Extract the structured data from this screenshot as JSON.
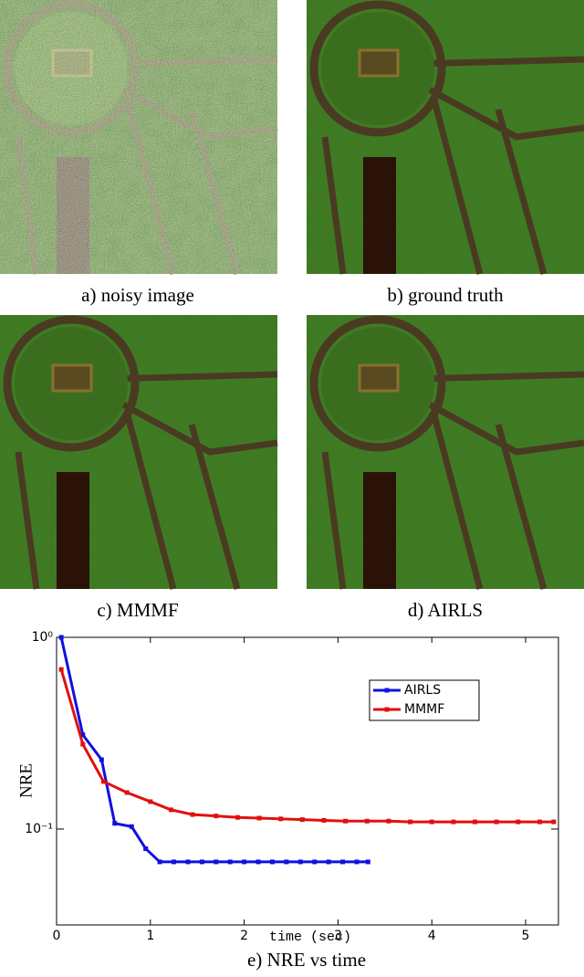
{
  "panels": [
    {
      "caption": "a) noisy image"
    },
    {
      "caption": "b) ground truth"
    },
    {
      "caption": "c) MMMF"
    },
    {
      "caption": "d) AIRLS"
    }
  ],
  "chart_data": {
    "type": "line",
    "caption": "e) NRE vs time",
    "xlabel": "time (sec)",
    "ylabel": "NRE",
    "log_y": true,
    "xlim": [
      0,
      5.35
    ],
    "ylim": [
      0.0316,
      1
    ],
    "xticks": [
      0,
      1,
      2,
      3,
      4,
      5
    ],
    "yticks": [
      {
        "value": 0.1,
        "label": "10⁻¹"
      },
      {
        "value": 1,
        "label": "10⁰"
      }
    ],
    "legend": "upper right",
    "series": [
      {
        "name": "AIRLS",
        "color": "#1010e0",
        "x": [
          0.05,
          0.28,
          0.48,
          0.62,
          0.8,
          0.95,
          1.1,
          1.25,
          1.4,
          1.55,
          1.7,
          1.85,
          2.0,
          2.15,
          2.3,
          2.45,
          2.6,
          2.75,
          2.9,
          3.05,
          3.2,
          3.32
        ],
        "values": [
          1.0,
          0.31,
          0.23,
          0.107,
          0.103,
          0.079,
          0.0674,
          0.0674,
          0.0674,
          0.0674,
          0.0674,
          0.0674,
          0.0674,
          0.0674,
          0.0674,
          0.0674,
          0.0674,
          0.0674,
          0.0674,
          0.0674,
          0.0674,
          0.0674
        ]
      },
      {
        "name": "MMMF",
        "color": "#e01010",
        "x": [
          0.05,
          0.28,
          0.5,
          0.75,
          1.0,
          1.22,
          1.45,
          1.7,
          1.93,
          2.16,
          2.39,
          2.62,
          2.85,
          3.08,
          3.31,
          3.54,
          3.77,
          4.0,
          4.23,
          4.46,
          4.69,
          4.92,
          5.15,
          5.3
        ],
        "values": [
          0.68,
          0.277,
          0.177,
          0.155,
          0.139,
          0.126,
          0.119,
          0.117,
          0.115,
          0.114,
          0.113,
          0.112,
          0.111,
          0.11,
          0.11,
          0.11,
          0.109,
          0.109,
          0.109,
          0.109,
          0.109,
          0.109,
          0.109,
          0.109
        ]
      }
    ]
  }
}
